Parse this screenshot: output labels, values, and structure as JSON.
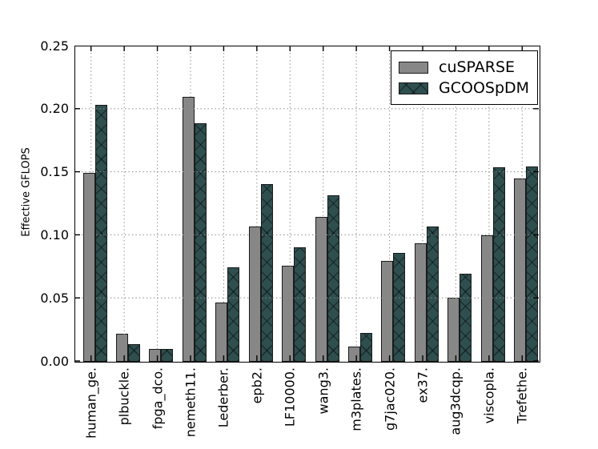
{
  "chart_data": {
    "type": "bar",
    "title": "",
    "xlabel": "",
    "ylabel": "Effective GFLOPS",
    "ylim": [
      0,
      0.25
    ],
    "yticks": [
      0.0,
      0.05,
      0.1,
      0.15,
      0.2,
      0.25
    ],
    "ytick_labels": [
      "0.00",
      "0.05",
      "0.10",
      "0.15",
      "0.20",
      "0.25"
    ],
    "grid": true,
    "grid_style": "dotted, drawn above bars",
    "legend_position": "upper right",
    "categories": [
      "human_ge.",
      "plbuckle.",
      "fpga_dco.",
      "nemeth11.",
      "Lederber.",
      "epb2.",
      "LF10000.",
      "wang3.",
      "m3plates.",
      "g7jac020.",
      "ex37.",
      "aug3dcqp.",
      "viscopla.",
      "Trefethe."
    ],
    "series": [
      {
        "name": "cuSPARSE",
        "color": "#878787",
        "hatch": "none",
        "values": [
          0.15,
          0.022,
          0.01,
          0.21,
          0.047,
          0.107,
          0.076,
          0.115,
          0.012,
          0.08,
          0.094,
          0.051,
          0.1,
          0.145
        ]
      },
      {
        "name": "GCOOSpDM",
        "color": "#2f4f4f",
        "hatch": "x",
        "values": [
          0.204,
          0.014,
          0.01,
          0.189,
          0.075,
          0.141,
          0.091,
          0.132,
          0.023,
          0.086,
          0.107,
          0.07,
          0.154,
          0.155
        ]
      }
    ]
  },
  "colors": {
    "background": "#ffffff",
    "bar_edge": "#1a1a1a",
    "grid": "#8a8a8a",
    "spine": "#000000",
    "tick": "#000000",
    "legend_border": "#000000"
  }
}
